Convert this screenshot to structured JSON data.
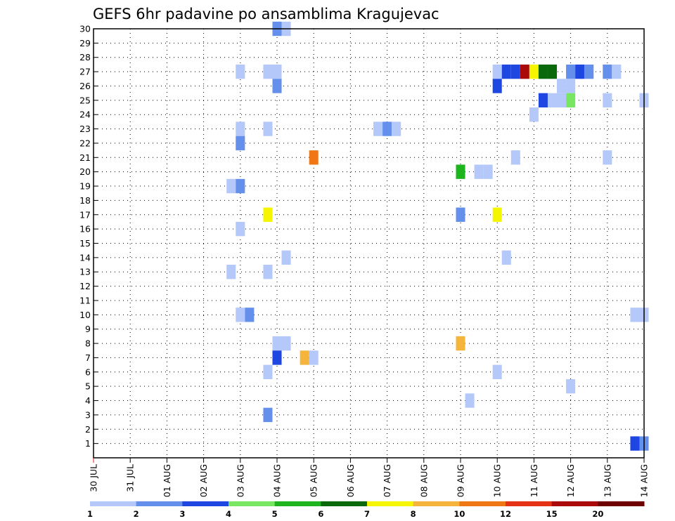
{
  "chart_data": {
    "type": "heatmap",
    "title": "GEFS 6hr padavine po ansamblima Kragujevac",
    "xlabel": "",
    "ylabel": "",
    "x_ticks": [
      "30 JUL",
      "31 JUL",
      "01 AUG",
      "02 AUG",
      "03 AUG",
      "04 AUG",
      "05 AUG",
      "06 AUG",
      "07 AUG",
      "08 AUG",
      "09 AUG",
      "10 AUG",
      "11 AUG",
      "12 AUG",
      "13 AUG",
      "14 AUG"
    ],
    "y_ticks": [
      1,
      2,
      3,
      4,
      5,
      6,
      7,
      8,
      9,
      10,
      11,
      12,
      13,
      14,
      15,
      16,
      17,
      18,
      19,
      20,
      21,
      22,
      23,
      24,
      25,
      26,
      27,
      28,
      29,
      30
    ],
    "x_unit": "6h steps from 30 JUL 00Z",
    "xlim": [
      0,
      60
    ],
    "ylim": [
      0,
      30
    ],
    "grid": true,
    "color_levels": [
      1,
      2,
      3,
      4,
      5,
      6,
      7,
      8,
      10,
      12,
      15,
      20
    ],
    "colors": [
      "#b4c8fa",
      "#6490ec",
      "#1e46e0",
      "#78e660",
      "#1eb41e",
      "#0a690a",
      "#f5f500",
      "#f5b43c",
      "#f07814",
      "#e63214",
      "#aa0a0a",
      "#700000"
    ],
    "colorbar_labels": [
      "1",
      "2",
      "3",
      "4",
      "5",
      "6",
      "7",
      "8",
      "10",
      "12",
      "15",
      "20"
    ],
    "cells": [
      {
        "member": 30,
        "step": 20,
        "level": 1
      },
      {
        "member": 30,
        "step": 21,
        "level": 0
      },
      {
        "member": 27,
        "step": 16,
        "level": 0
      },
      {
        "member": 27,
        "step": 19,
        "level": 0
      },
      {
        "member": 27,
        "step": 20,
        "level": 0
      },
      {
        "member": 27,
        "step": 44,
        "level": 0
      },
      {
        "member": 27,
        "step": 45,
        "level": 2
      },
      {
        "member": 27,
        "step": 46,
        "level": 2
      },
      {
        "member": 27,
        "step": 47,
        "level": 10
      },
      {
        "member": 27,
        "step": 48,
        "level": 6
      },
      {
        "member": 27,
        "step": 49,
        "level": 5
      },
      {
        "member": 27,
        "step": 50,
        "level": 5
      },
      {
        "member": 27,
        "step": 52,
        "level": 1
      },
      {
        "member": 27,
        "step": 53,
        "level": 2
      },
      {
        "member": 27,
        "step": 54,
        "level": 1
      },
      {
        "member": 27,
        "step": 56,
        "level": 1
      },
      {
        "member": 27,
        "step": 57,
        "level": 0
      },
      {
        "member": 26,
        "step": 20,
        "level": 1
      },
      {
        "member": 26,
        "step": 44,
        "level": 2
      },
      {
        "member": 26,
        "step": 51,
        "level": 0
      },
      {
        "member": 26,
        "step": 52,
        "level": 0
      },
      {
        "member": 25,
        "step": 49,
        "level": 2
      },
      {
        "member": 25,
        "step": 50,
        "level": 0
      },
      {
        "member": 25,
        "step": 51,
        "level": 0
      },
      {
        "member": 25,
        "step": 52,
        "level": 3
      },
      {
        "member": 25,
        "step": 56,
        "level": 0
      },
      {
        "member": 25,
        "step": 60,
        "level": 0
      },
      {
        "member": 24,
        "step": 48,
        "level": 0
      },
      {
        "member": 23,
        "step": 16,
        "level": 0
      },
      {
        "member": 23,
        "step": 19,
        "level": 0
      },
      {
        "member": 23,
        "step": 31,
        "level": 0
      },
      {
        "member": 23,
        "step": 32,
        "level": 1
      },
      {
        "member": 23,
        "step": 33,
        "level": 0
      },
      {
        "member": 22,
        "step": 16,
        "level": 1
      },
      {
        "member": 21,
        "step": 24,
        "level": 8
      },
      {
        "member": 21,
        "step": 46,
        "level": 0
      },
      {
        "member": 21,
        "step": 56,
        "level": 0
      },
      {
        "member": 20,
        "step": 40,
        "level": 4
      },
      {
        "member": 20,
        "step": 42,
        "level": 0
      },
      {
        "member": 20,
        "step": 43,
        "level": 0
      },
      {
        "member": 19,
        "step": 15,
        "level": 0
      },
      {
        "member": 19,
        "step": 16,
        "level": 1
      },
      {
        "member": 17,
        "step": 19,
        "level": 6
      },
      {
        "member": 17,
        "step": 40,
        "level": 1
      },
      {
        "member": 17,
        "step": 44,
        "level": 6
      },
      {
        "member": 16,
        "step": 16,
        "level": 0
      },
      {
        "member": 14,
        "step": 21,
        "level": 0
      },
      {
        "member": 14,
        "step": 45,
        "level": 0
      },
      {
        "member": 13,
        "step": 15,
        "level": 0
      },
      {
        "member": 13,
        "step": 19,
        "level": 0
      },
      {
        "member": 10,
        "step": 16,
        "level": 0
      },
      {
        "member": 10,
        "step": 17,
        "level": 1
      },
      {
        "member": 10,
        "step": 59,
        "level": 0
      },
      {
        "member": 10,
        "step": 60,
        "level": 0
      },
      {
        "member": 8,
        "step": 20,
        "level": 0
      },
      {
        "member": 8,
        "step": 21,
        "level": 0
      },
      {
        "member": 8,
        "step": 40,
        "level": 7
      },
      {
        "member": 7,
        "step": 20,
        "level": 2
      },
      {
        "member": 7,
        "step": 23,
        "level": 7
      },
      {
        "member": 7,
        "step": 24,
        "level": 0
      },
      {
        "member": 6,
        "step": 19,
        "level": 0
      },
      {
        "member": 6,
        "step": 44,
        "level": 0
      },
      {
        "member": 5,
        "step": 52,
        "level": 0
      },
      {
        "member": 4,
        "step": 41,
        "level": 0
      },
      {
        "member": 3,
        "step": 19,
        "level": 1
      },
      {
        "member": 1,
        "step": 59,
        "level": 2
      },
      {
        "member": 1,
        "step": 60,
        "level": 1
      }
    ]
  }
}
